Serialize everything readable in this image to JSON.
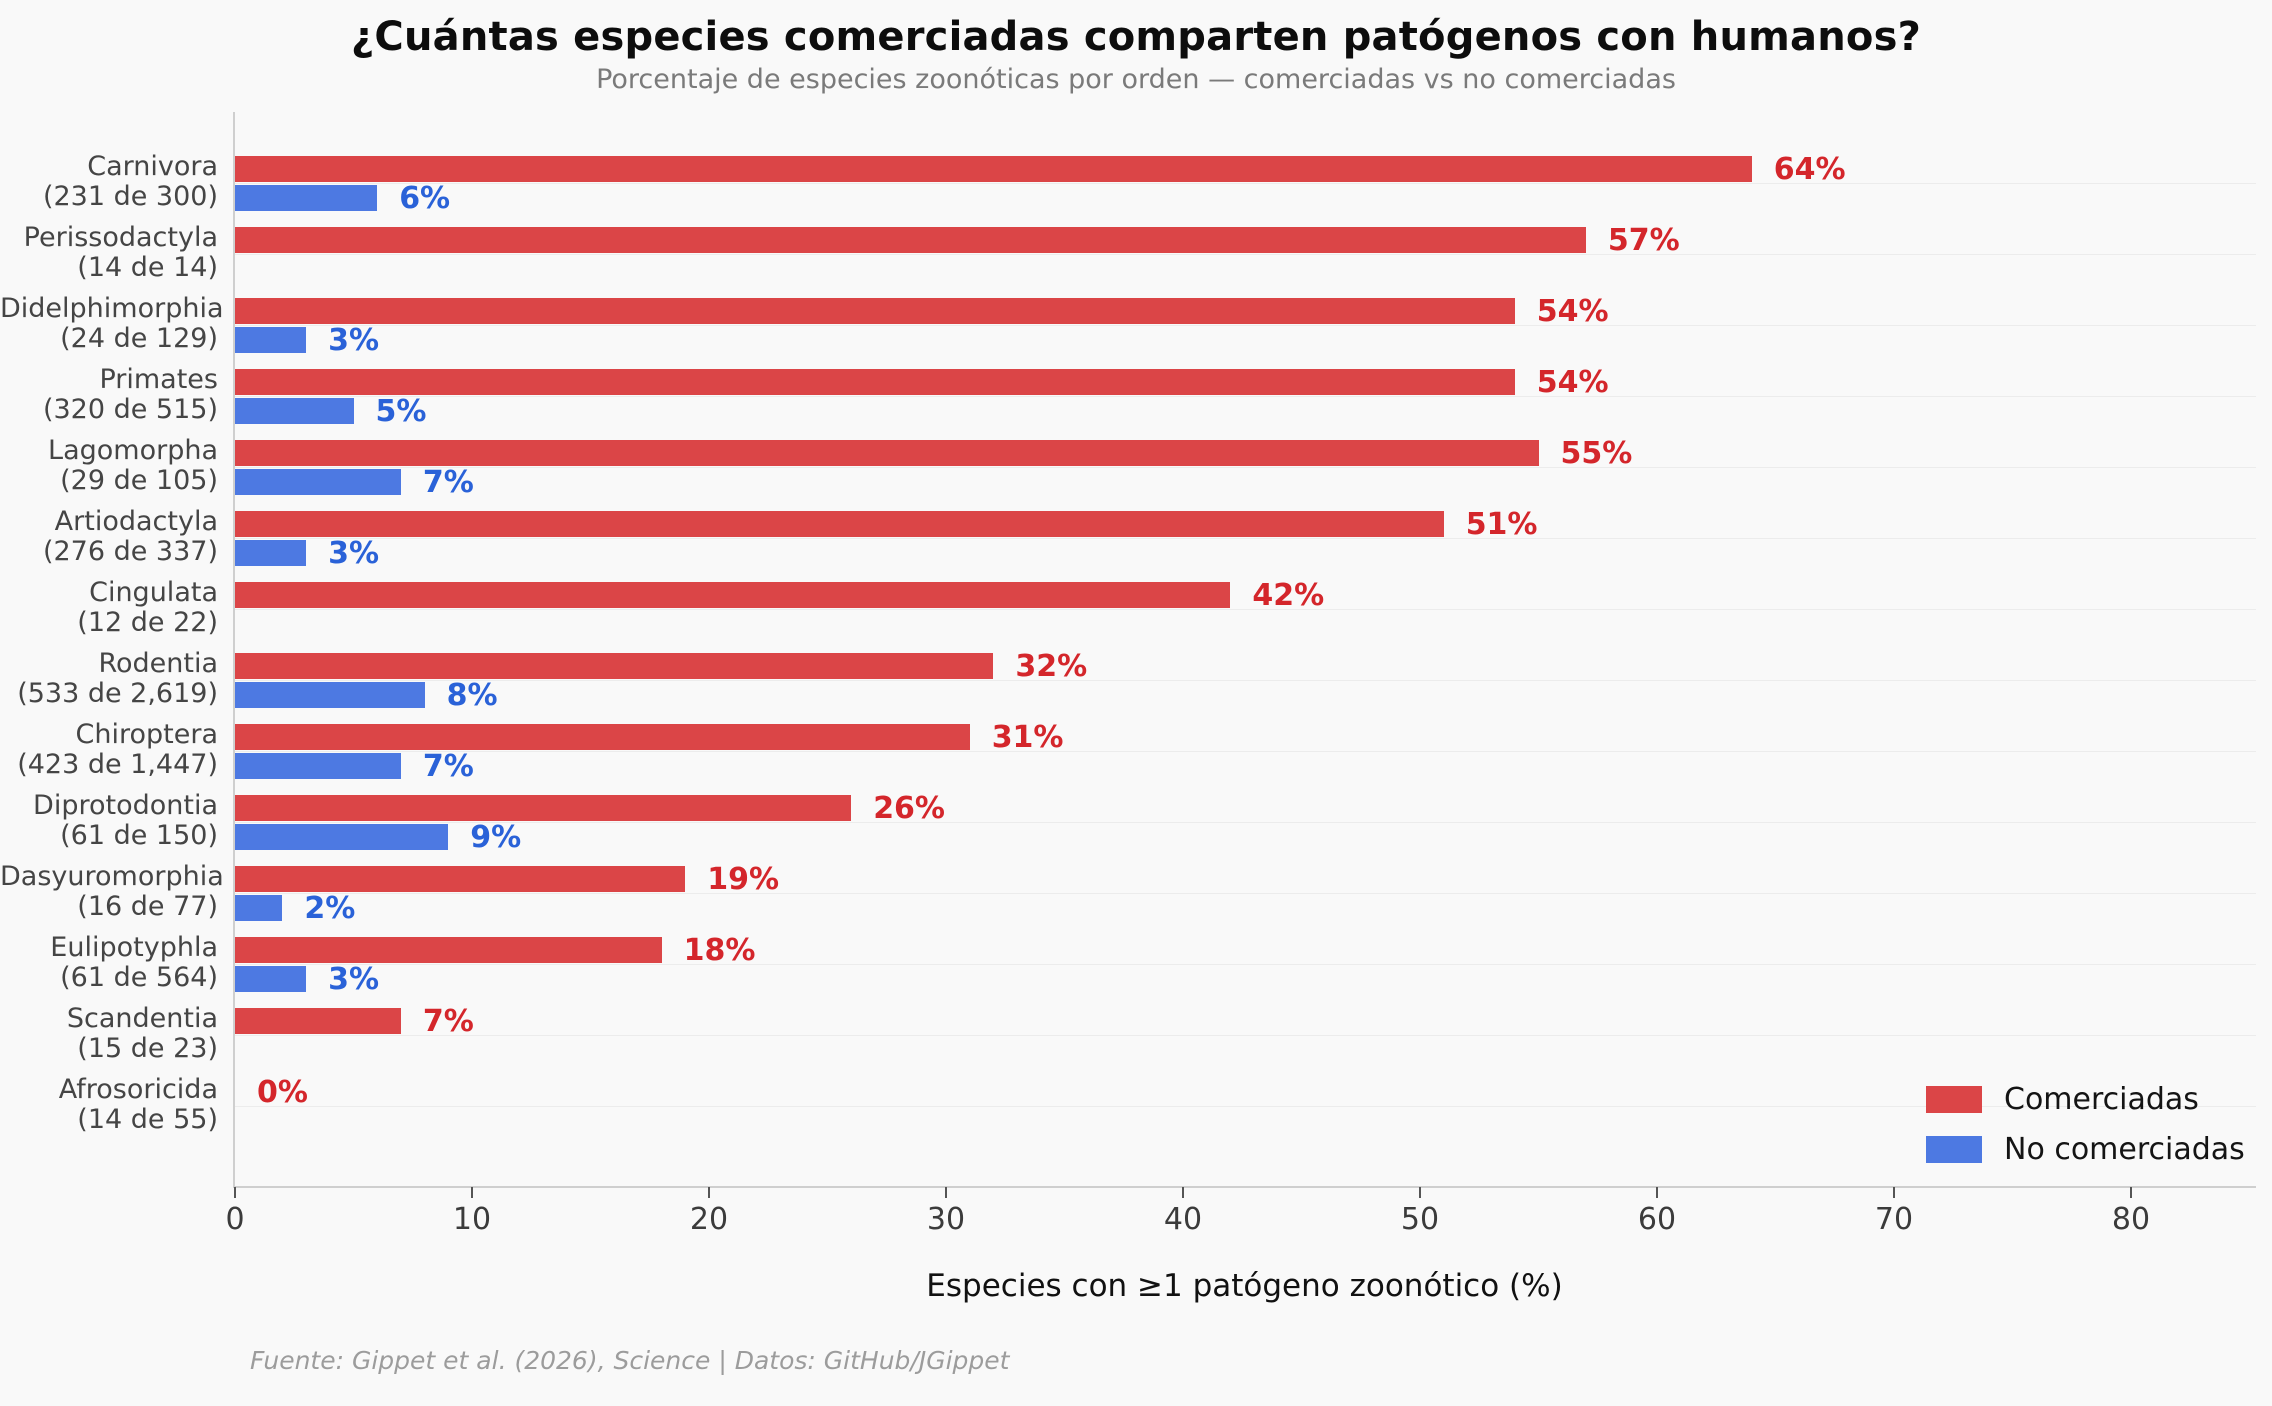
{
  "chart_data": {
    "type": "bar",
    "orientation": "horizontal",
    "title": "¿Cuántas especies comerciadas comparten patógenos con humanos?",
    "subtitle": "Porcentaje de especies zoonóticas por orden — comerciadas vs no comerciadas",
    "xlabel": "Especies con ≥1 patógeno zoonótico (%)",
    "xlim": [
      0,
      85
    ],
    "xticks": [
      0,
      10,
      20,
      30,
      40,
      50,
      60,
      70,
      80
    ],
    "grid": "row-center-lines",
    "legend_position": "lower right",
    "series": [
      {
        "name": "Comerciadas",
        "color": "#db4547",
        "label_color": "#d4262b"
      },
      {
        "name": "No comerciadas",
        "color": "#4d79e2",
        "label_color": "#2a62d8"
      }
    ],
    "categories": [
      {
        "order": "Carnivora",
        "count": "(231 de 300)",
        "traded_pct": 64,
        "traded_label": "64%",
        "untraded_pct": 6,
        "untraded_label": "6%"
      },
      {
        "order": "Perissodactyla",
        "count": "(14 de 14)",
        "traded_pct": 57,
        "traded_label": "57%",
        "untraded_pct": null,
        "untraded_label": null
      },
      {
        "order": "Didelphimorphia",
        "count": "(24 de 129)",
        "traded_pct": 54,
        "traded_label": "54%",
        "untraded_pct": 3,
        "untraded_label": "3%"
      },
      {
        "order": "Primates",
        "count": "(320 de 515)",
        "traded_pct": 54,
        "traded_label": "54%",
        "untraded_pct": 5,
        "untraded_label": "5%"
      },
      {
        "order": "Lagomorpha",
        "count": "(29 de 105)",
        "traded_pct": 55,
        "traded_label": "55%",
        "untraded_pct": 7,
        "untraded_label": "7%"
      },
      {
        "order": "Artiodactyla",
        "count": "(276 de 337)",
        "traded_pct": 51,
        "traded_label": "51%",
        "untraded_pct": 3,
        "untraded_label": "3%"
      },
      {
        "order": "Cingulata",
        "count": "(12 de 22)",
        "traded_pct": 42,
        "traded_label": "42%",
        "untraded_pct": null,
        "untraded_label": null
      },
      {
        "order": "Rodentia",
        "count": "(533 de 2,619)",
        "traded_pct": 32,
        "traded_label": "32%",
        "untraded_pct": 8,
        "untraded_label": "8%"
      },
      {
        "order": "Chiroptera",
        "count": "(423 de 1,447)",
        "traded_pct": 31,
        "traded_label": "31%",
        "untraded_pct": 7,
        "untraded_label": "7%"
      },
      {
        "order": "Diprotodontia",
        "count": "(61 de 150)",
        "traded_pct": 26,
        "traded_label": "26%",
        "untraded_pct": 9,
        "untraded_label": "9%"
      },
      {
        "order": "Dasyuromorphia",
        "count": "(16 de 77)",
        "traded_pct": 19,
        "traded_label": "19%",
        "untraded_pct": 2,
        "untraded_label": "2%"
      },
      {
        "order": "Eulipotyphla",
        "count": "(61 de 564)",
        "traded_pct": 18,
        "traded_label": "18%",
        "untraded_pct": 3,
        "untraded_label": "3%"
      },
      {
        "order": "Scandentia",
        "count": "(15 de 23)",
        "traded_pct": 7,
        "traded_label": "7%",
        "untraded_pct": null,
        "untraded_label": null
      },
      {
        "order": "Afrosoricida",
        "count": "(14 de 55)",
        "traded_pct": 0,
        "traded_label": "0%",
        "untraded_pct": null,
        "untraded_label": null
      }
    ],
    "footer": "Fuente: Gippet et al. (2026), Science | Datos: GitHub/JGippet",
    "colors": {
      "background": "#f9f9f9",
      "grid": "#ececec",
      "spine": "#cfcfcf",
      "tick_mark": "#555555",
      "tick_label": "#3b3b3b",
      "category_label": "#454545",
      "title": "#0d0d0d",
      "subtitle": "#7a7a7a",
      "footer": "#9c9c9c"
    }
  }
}
